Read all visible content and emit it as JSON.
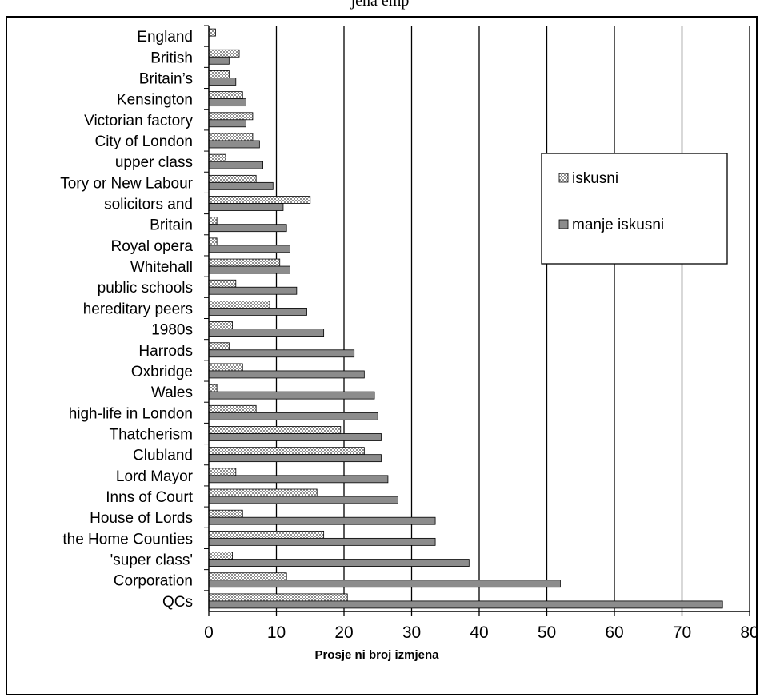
{
  "caption": "jena emp",
  "chart_data": {
    "type": "bar",
    "orientation": "horizontal",
    "categories": [
      "England",
      "British",
      "Britain’s",
      "Kensington",
      "Victorian factory",
      "City of London",
      "upper class",
      "Tory or New Labour",
      "solicitors and",
      "Britain",
      "Royal opera",
      "Whitehall",
      "public schools",
      "hereditary peers",
      "1980s",
      "Harrods",
      "Oxbridge",
      "Wales",
      "high-life in London",
      "Thatcherism",
      "Clubland",
      "Lord Mayor",
      "Inns of Court",
      "House of Lords",
      "the Home Counties",
      "'super class'",
      "Corporation",
      "QCs"
    ],
    "series": [
      {
        "name": "iskusni",
        "color": "#c8c8c8",
        "pattern": "checkered",
        "values": [
          1,
          4.5,
          3,
          5,
          6.5,
          6.5,
          2.5,
          7,
          15,
          1.2,
          1.2,
          10.5,
          4,
          9,
          3.5,
          3,
          5,
          1.2,
          7,
          19.5,
          23,
          4,
          16,
          5,
          17,
          3.5,
          11.5,
          20.5
        ]
      },
      {
        "name": "manje iskusni",
        "color": "#8c8c8c",
        "pattern": "solid",
        "values": [
          0,
          3,
          4,
          5.5,
          5.5,
          7.5,
          8,
          9.5,
          11,
          11.5,
          12,
          12,
          13,
          14.5,
          17,
          21.5,
          23,
          24.5,
          25,
          25.5,
          25.5,
          26.5,
          28,
          33.5,
          33.5,
          38.5,
          52,
          76
        ]
      }
    ],
    "xlabel": "Prosje ni broj izmjena",
    "xlim": [
      0,
      80
    ],
    "x_ticks": [
      "0",
      "10",
      "20",
      "30",
      "40",
      "50",
      "60",
      "70",
      "80"
    ],
    "grid": "vertical",
    "legend_position": "right"
  }
}
